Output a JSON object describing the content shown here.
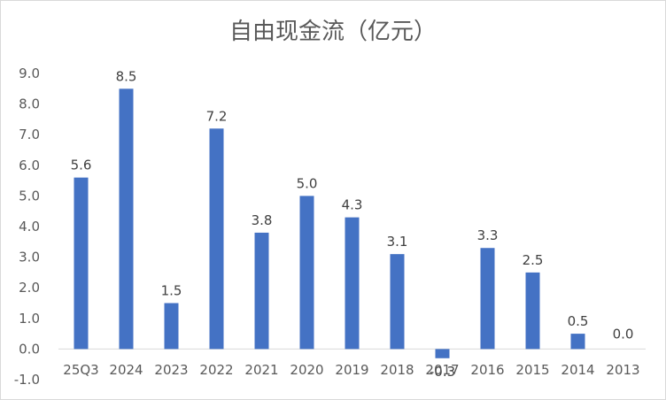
{
  "chart_data": {
    "type": "bar",
    "title": "自由现金流（亿元）",
    "xlabel": "",
    "ylabel": "",
    "categories": [
      "25Q3",
      "2024",
      "2023",
      "2022",
      "2021",
      "2020",
      "2019",
      "2018",
      "2017",
      "2016",
      "2015",
      "2014",
      "2013"
    ],
    "values": [
      5.6,
      8.5,
      1.5,
      7.2,
      3.8,
      5.0,
      4.3,
      3.1,
      -0.3,
      3.3,
      2.5,
      0.5,
      0.0
    ],
    "data_labels": [
      "5.6",
      "8.5",
      "1.5",
      "7.2",
      "3.8",
      "5.0",
      "4.3",
      "3.1",
      "-0.3",
      "3.3",
      "2.5",
      "0.5",
      "0.0"
    ],
    "ylim": [
      -1.0,
      9.0
    ],
    "yticks": [
      9.0,
      8.0,
      7.0,
      6.0,
      5.0,
      4.0,
      3.0,
      2.0,
      1.0,
      0.0,
      -1.0
    ],
    "ytick_labels": [
      "9.0",
      "8.0",
      "7.0",
      "6.0",
      "5.0",
      "4.0",
      "3.0",
      "2.0",
      "1.0",
      "0.0",
      "-1.0"
    ],
    "bar_color": "#4472c4",
    "grid": false,
    "legend": "none"
  }
}
